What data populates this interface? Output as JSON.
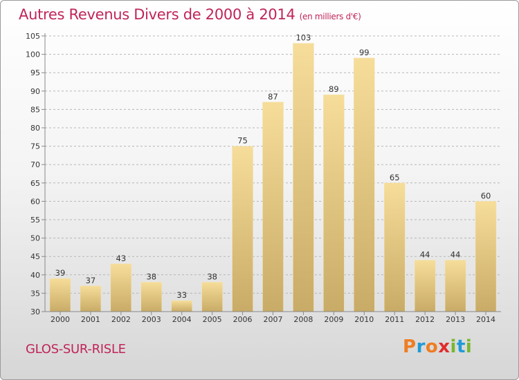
{
  "chart_data": {
    "type": "bar",
    "title": "Autres Revenus Divers de 2000 à 2014",
    "subtitle": "(en milliers d'€)",
    "categories": [
      "2000",
      "2001",
      "2002",
      "2003",
      "2004",
      "2005",
      "2006",
      "2007",
      "2008",
      "2009",
      "2010",
      "2011",
      "2012",
      "2013",
      "2014"
    ],
    "values": [
      39,
      37,
      43,
      38,
      33,
      38,
      75,
      87,
      103,
      89,
      99,
      65,
      44,
      44,
      60
    ],
    "ylim": [
      30,
      105
    ],
    "yticks": [
      30,
      35,
      40,
      45,
      50,
      55,
      60,
      65,
      70,
      75,
      80,
      85,
      90,
      95,
      100,
      105
    ],
    "grid": true,
    "bar_color_light": "#f6dd99",
    "bar_color_dark": "#c8ab67"
  },
  "footer": {
    "location": "GLOS-SUR-RISLE"
  },
  "brand": {
    "name": "Proxiti",
    "colors": [
      "#ef7d22",
      "#1f9bd7",
      "#ef7d22",
      "#e22b2b",
      "#78b72e",
      "#1f9bd7",
      "#78b72e"
    ]
  },
  "colors": {
    "accent": "#c0245a",
    "grid": "#b5b5b5"
  }
}
